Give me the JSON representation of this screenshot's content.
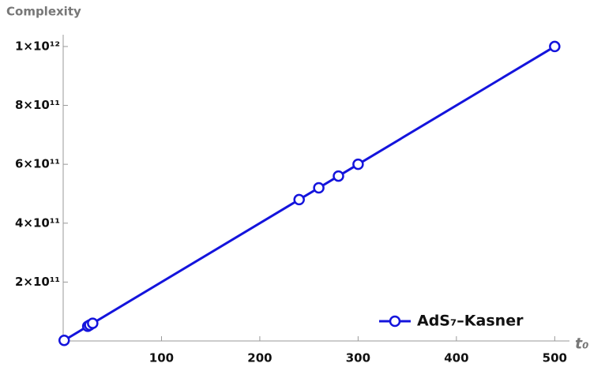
{
  "chart_data": {
    "type": "line",
    "y_label": "Complexity",
    "x_label": "t₀",
    "x": [
      1,
      25,
      27,
      30,
      240,
      260,
      280,
      300,
      500
    ],
    "series": [
      {
        "name": "AdS₇–Kasner",
        "color": "#1414dc",
        "values": [
          2000000000,
          50000000000,
          54000000000,
          60000000000,
          480000000000,
          520000000000,
          560000000000,
          600000000000,
          1000000000000
        ]
      }
    ],
    "xlim": [
      0,
      515
    ],
    "xticks": [
      100,
      200,
      300,
      400,
      500
    ],
    "ylim": [
      0,
      1040000000000
    ],
    "yticks": [
      {
        "value": 200000000000,
        "label": "2×10¹¹"
      },
      {
        "value": 400000000000,
        "label": "4×10¹¹"
      },
      {
        "value": 600000000000,
        "label": "6×10¹¹"
      },
      {
        "value": 800000000000,
        "label": "8×10¹¹"
      },
      {
        "value": 1000000000000,
        "label": "1×10¹²"
      }
    ],
    "legend": "bottom-right"
  }
}
